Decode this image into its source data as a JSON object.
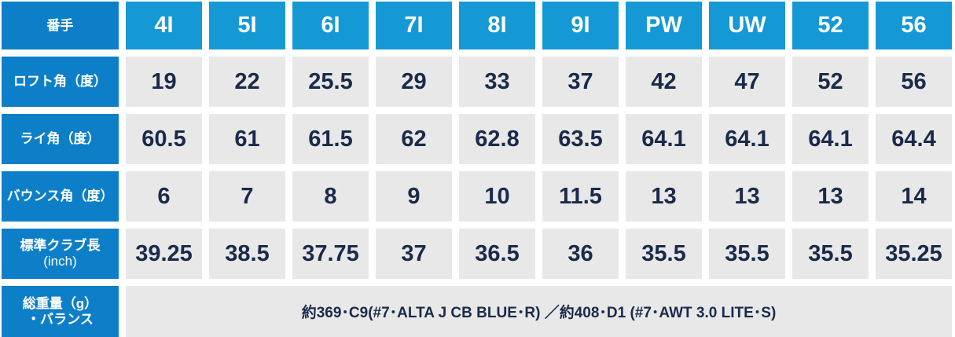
{
  "header": {
    "label": "番手",
    "clubs": [
      "4I",
      "5I",
      "6I",
      "7I",
      "8I",
      "9I",
      "PW",
      "UW",
      "52",
      "56"
    ]
  },
  "rows": [
    {
      "label": "ロフト角（度）",
      "values": [
        "19",
        "22",
        "25.5",
        "29",
        "33",
        "37",
        "42",
        "47",
        "52",
        "56"
      ]
    },
    {
      "label": "ライ角（度）",
      "values": [
        "60.5",
        "61",
        "61.5",
        "62",
        "62.8",
        "63.5",
        "64.1",
        "64.1",
        "64.1",
        "64.4"
      ]
    },
    {
      "label": "バウンス角（度）",
      "values": [
        "6",
        "7",
        "8",
        "9",
        "10",
        "11.5",
        "13",
        "13",
        "13",
        "14"
      ]
    },
    {
      "label": "標準クラブ長",
      "sublabel": "(inch)",
      "values": [
        "39.25",
        "38.5",
        "37.75",
        "37",
        "36.5",
        "36",
        "35.5",
        "35.5",
        "35.5",
        "35.25"
      ]
    }
  ],
  "weight": {
    "label_line1": "総重量（g）",
    "label_line2": "・バランス",
    "text": "約369･C9(#7･ALTA J CB BLUE･R) ／約408･D1 (#7･AWT 3.0 LITE･S)"
  }
}
